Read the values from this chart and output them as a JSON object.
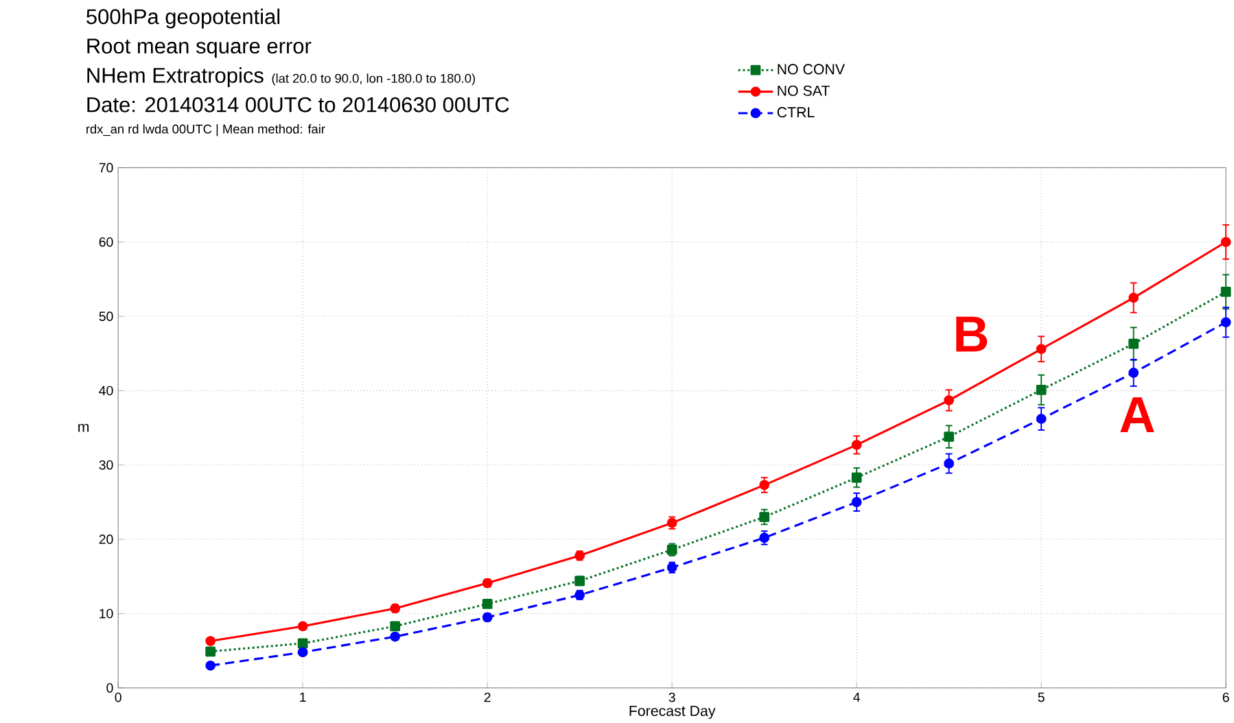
{
  "chart_data": {
    "type": "line",
    "title": "500hPa geopotential",
    "subtitle": "Root mean square error",
    "annotations": [
      "NHem Extratropics",
      "(lat  20.0 to 90.0, lon  -180.0 to  180.0)",
      "Date: 20140314 00UTC to 20140630 00UTC",
      "rdx_an rd lwda 00UTC | Mean method: fair",
      "B",
      "A"
    ],
    "xlabel": "Forecast Day",
    "ylabel": "m",
    "x": [
      0.5,
      1,
      1.5,
      2,
      2.5,
      3,
      3.5,
      4,
      4.5,
      5,
      5.5,
      6
    ],
    "series": [
      {
        "name": "NO CONV",
        "color": "#007020",
        "marker": "square",
        "line_style": "dotted",
        "values": [
          4.9,
          6.0,
          8.3,
          11.3,
          14.4,
          18.6,
          23.0,
          28.3,
          33.8,
          40.1,
          46.3,
          53.3
        ],
        "errors": [
          0.4,
          0.4,
          0.5,
          0.5,
          0.6,
          0.8,
          1.0,
          1.3,
          1.5,
          2.0,
          2.2,
          2.3
        ]
      },
      {
        "name": "NO SAT",
        "color": "#ff0000",
        "marker": "circle",
        "line_style": "solid",
        "values": [
          6.3,
          8.3,
          10.7,
          14.1,
          17.8,
          22.2,
          27.3,
          32.7,
          38.7,
          45.6,
          52.5,
          60.0
        ],
        "errors": [
          0.4,
          0.4,
          0.5,
          0.5,
          0.6,
          0.8,
          1.0,
          1.2,
          1.4,
          1.7,
          2.0,
          2.3
        ]
      },
      {
        "name": "CTRL",
        "color": "#0000ff",
        "marker": "circle",
        "line_style": "dashed",
        "values": [
          3.0,
          4.8,
          6.9,
          9.5,
          12.5,
          16.2,
          20.2,
          25.0,
          30.2,
          36.2,
          42.4,
          49.2
        ],
        "errors": [
          0.3,
          0.4,
          0.4,
          0.5,
          0.6,
          0.7,
          0.9,
          1.2,
          1.3,
          1.5,
          1.8,
          2.0
        ]
      }
    ],
    "xlim": [
      0,
      6
    ],
    "ylim": [
      0,
      70
    ],
    "xticks": [
      0,
      1,
      2,
      3,
      4,
      5,
      6
    ],
    "yticks": [
      0,
      10,
      20,
      30,
      40,
      50,
      60,
      70
    ],
    "grid": true,
    "legend": "top right"
  }
}
